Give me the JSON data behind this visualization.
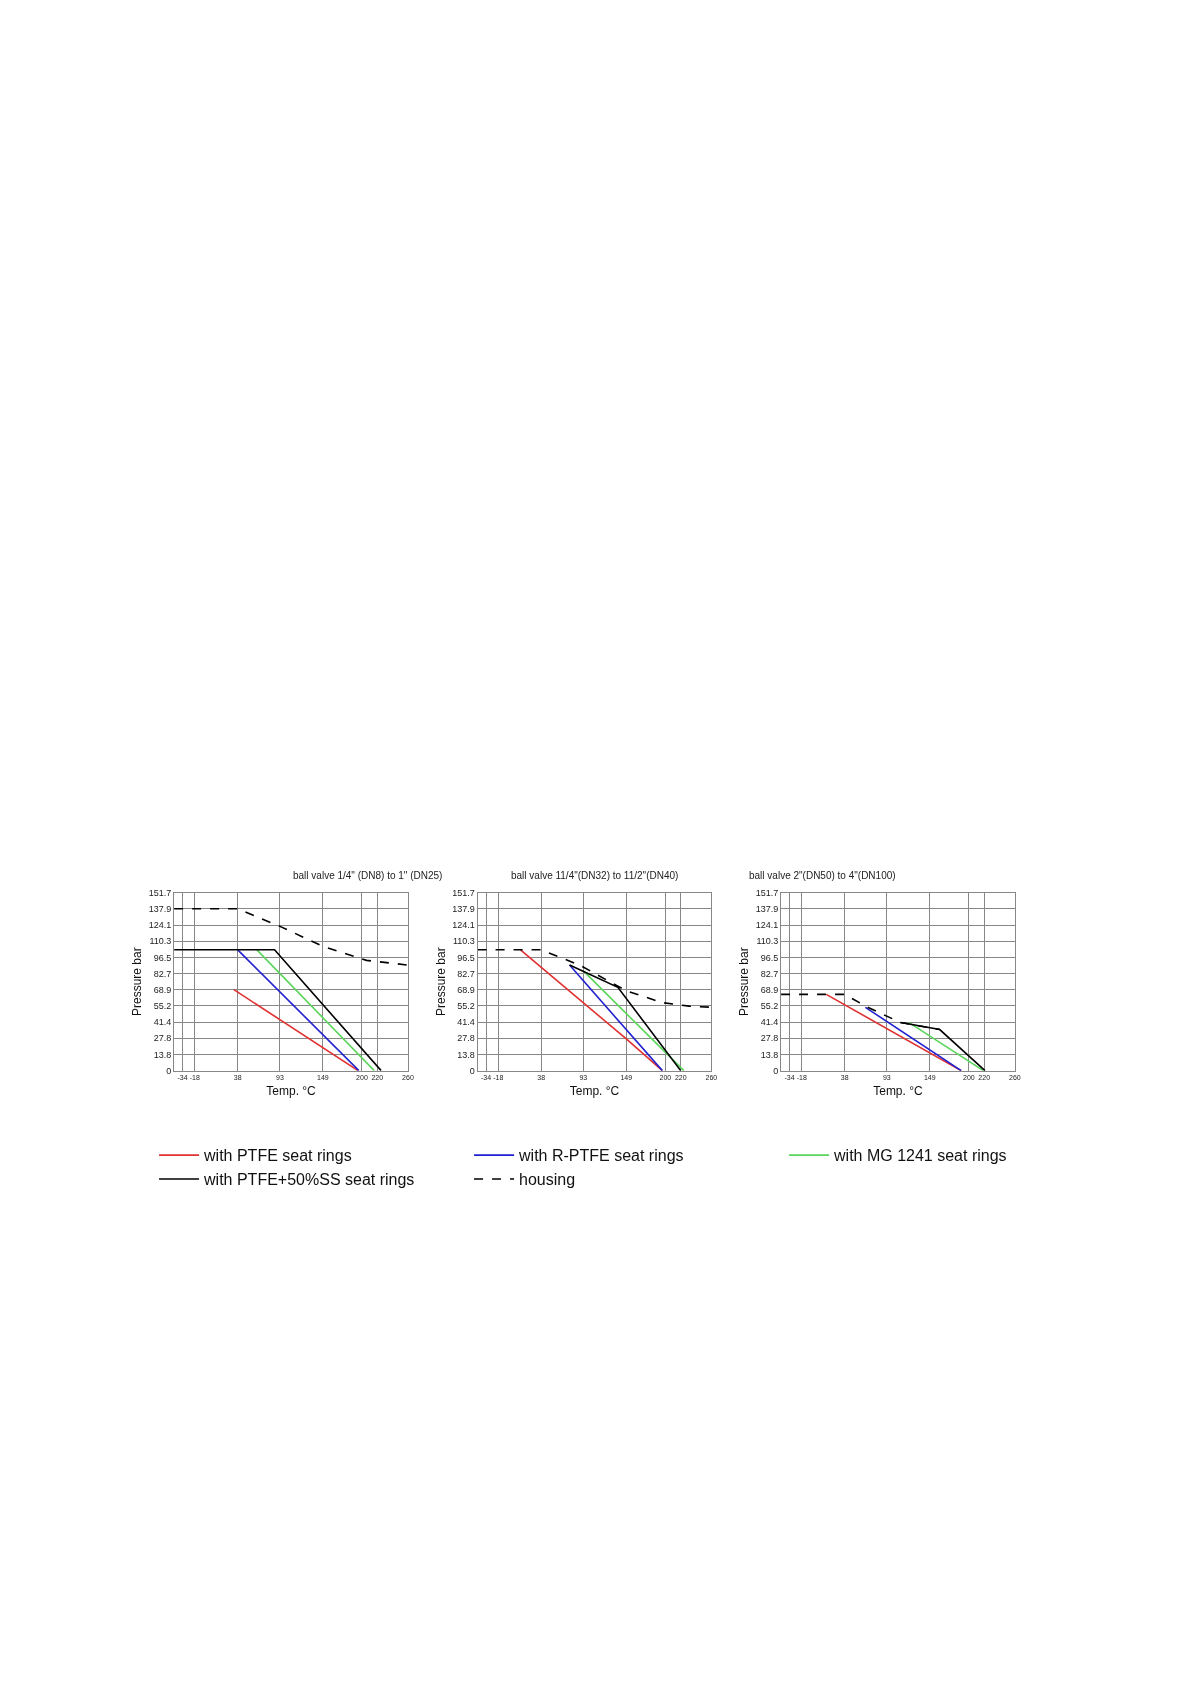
{
  "chart_data": [
    {
      "type": "line",
      "title": "ball valve 1/4\" (DN8) to 1\" (DN25)",
      "xlabel": "Temp. °C",
      "ylabel": "Pressure bar",
      "xlim": [
        -45,
        260
      ],
      "ylim": [
        0,
        151.7
      ],
      "xticks": [
        -34,
        -18,
        38,
        93,
        149,
        200,
        220,
        260
      ],
      "yticks": [
        0,
        13.8,
        27.8,
        41.4,
        55.2,
        68.9,
        82.7,
        96.5,
        110.3,
        124.1,
        137.9,
        151.7
      ],
      "grid": true,
      "legend": "bottom",
      "marker": "none",
      "series": [
        {
          "name": "with PTFE seat rings",
          "color": "#e03030",
          "x": [
            33,
            195
          ],
          "values": [
            69,
            0
          ]
        },
        {
          "name": "with R-PTFE seat rings",
          "color": "#2020d0",
          "x": [
            38,
            196
          ],
          "values": [
            103,
            0
          ]
        },
        {
          "name": "with MG 1241 seat rings",
          "color": "#5ad55a",
          "x": [
            63,
            216
          ],
          "values": [
            103,
            0
          ]
        },
        {
          "name": "with PTFE+50%SS seat rings",
          "color": "#000000",
          "x": [
            -45,
            86,
            225
          ],
          "values": [
            103,
            103,
            0
          ]
        },
        {
          "name": "housing",
          "color": "#000000",
          "line_style": "dashed",
          "x": [
            -45,
            38,
            93,
            149,
            206,
            260
          ],
          "values": [
            138,
            138,
            123,
            106,
            94,
            90
          ]
        }
      ]
    },
    {
      "type": "line",
      "title": "ball valve 11/4\"(DN32) to 11/2\"(DN40)",
      "xlabel": "Temp. °C",
      "ylabel": "Pressure bar",
      "xlim": [
        -45,
        260
      ],
      "ylim": [
        0,
        151.7
      ],
      "xticks": [
        -34,
        -18,
        38,
        93,
        149,
        200,
        220,
        260
      ],
      "yticks": [
        0,
        13.8,
        27.8,
        41.4,
        55.2,
        68.9,
        82.7,
        96.5,
        110.3,
        124.1,
        137.9,
        151.7
      ],
      "grid": true,
      "legend": "bottom",
      "marker": "none",
      "series": [
        {
          "name": "with PTFE seat rings",
          "color": "#e03030",
          "x": [
            11,
            149,
            196
          ],
          "values": [
            103,
            27,
            0
          ]
        },
        {
          "name": "with R-PTFE seat rings",
          "color": "#2020d0",
          "x": [
            75,
            196
          ],
          "values": [
            90,
            0
          ]
        },
        {
          "name": "with MG 1241 seat rings",
          "color": "#5ad55a",
          "x": [
            93,
            224
          ],
          "values": [
            85,
            0
          ]
        },
        {
          "name": "with PTFE+50%SS seat rings",
          "color": "#000000",
          "x": [
            75,
            138,
            220
          ],
          "values": [
            90,
            71,
            0
          ]
        },
        {
          "name": "housing",
          "color": "#000000",
          "line_style": "dashed",
          "x": [
            -45,
            38,
            88,
            138,
            149,
            196,
            231,
            260
          ],
          "values": [
            103,
            103,
            90,
            72,
            68,
            58,
            55,
            54
          ]
        }
      ]
    },
    {
      "type": "line",
      "title": "ball valve 2\"(DN50) to 4\"(DN100)",
      "xlabel": "Temp. °C",
      "ylabel": "Pressure bar",
      "xlim": [
        -45,
        260
      ],
      "ylim": [
        0,
        151.7
      ],
      "xticks": [
        -34,
        -18,
        38,
        93,
        149,
        200,
        220,
        260
      ],
      "yticks": [
        0,
        13.8,
        27.8,
        41.4,
        55.2,
        68.9,
        82.7,
        96.5,
        110.3,
        124.1,
        137.9,
        151.7
      ],
      "grid": true,
      "legend": "bottom",
      "marker": "none",
      "series": [
        {
          "name": "with PTFE seat rings",
          "color": "#e03030",
          "x": [
            14,
            190
          ],
          "values": [
            65,
            0
          ]
        },
        {
          "name": "with R-PTFE seat rings",
          "color": "#2020d0",
          "x": [
            65,
            190
          ],
          "values": [
            54,
            0
          ]
        },
        {
          "name": "with MG 1241 seat rings",
          "color": "#5ad55a",
          "x": [
            122,
            219
          ],
          "values": [
            41,
            0
          ]
        },
        {
          "name": "with PTFE+50%SS seat rings",
          "color": "#000000",
          "x": [
            111,
            162,
            221
          ],
          "values": [
            41,
            35,
            0
          ]
        },
        {
          "name": "housing",
          "color": "#000000",
          "line_style": "dashed",
          "x": [
            -45,
            38,
            68,
            111,
            162
          ],
          "values": [
            65,
            65,
            54,
            41,
            35
          ]
        }
      ]
    }
  ]
}
